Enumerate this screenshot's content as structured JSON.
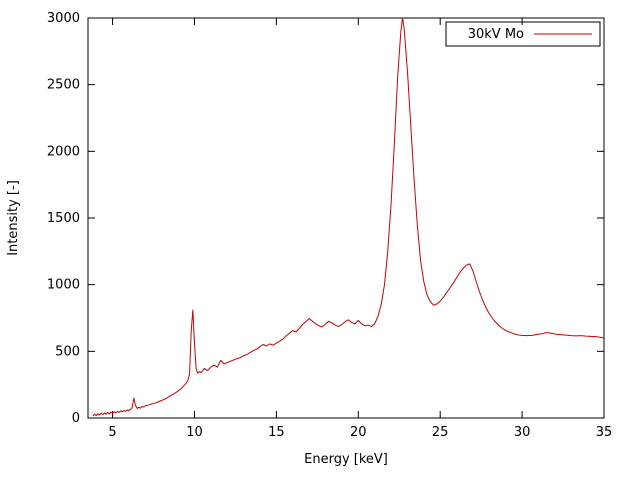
{
  "chart_data": {
    "type": "line",
    "title": "",
    "xlabel": "Energy [keV]",
    "ylabel": "Intensity [-]",
    "xlim": [
      3.5,
      35
    ],
    "ylim": [
      0,
      3000
    ],
    "xticks": [
      5,
      10,
      15,
      20,
      25,
      30,
      35
    ],
    "yticks": [
      0,
      500,
      1000,
      1500,
      2000,
      2500,
      3000
    ],
    "grid": false,
    "legend": {
      "position": "top-right",
      "border": true
    },
    "colors": {
      "line": "#cc0000",
      "axis": "#000000",
      "background": "#ffffff"
    },
    "series": [
      {
        "name": "30kV Mo",
        "color": "#cc0000",
        "points": [
          [
            3.8,
            15
          ],
          [
            3.9,
            28
          ],
          [
            4.0,
            18
          ],
          [
            4.1,
            32
          ],
          [
            4.2,
            22
          ],
          [
            4.3,
            36
          ],
          [
            4.4,
            25
          ],
          [
            4.5,
            38
          ],
          [
            4.6,
            28
          ],
          [
            4.7,
            42
          ],
          [
            4.8,
            30
          ],
          [
            4.9,
            44
          ],
          [
            5.0,
            35
          ],
          [
            5.1,
            48
          ],
          [
            5.2,
            38
          ],
          [
            5.3,
            50
          ],
          [
            5.4,
            42
          ],
          [
            5.5,
            54
          ],
          [
            5.6,
            46
          ],
          [
            5.7,
            56
          ],
          [
            5.8,
            50
          ],
          [
            5.9,
            60
          ],
          [
            6.0,
            56
          ],
          [
            6.1,
            66
          ],
          [
            6.2,
            78
          ],
          [
            6.3,
            150
          ],
          [
            6.4,
            95
          ],
          [
            6.5,
            72
          ],
          [
            6.6,
            80
          ],
          [
            6.7,
            74
          ],
          [
            6.8,
            86
          ],
          [
            6.9,
            82
          ],
          [
            7.0,
            92
          ],
          [
            7.2,
            98
          ],
          [
            7.4,
            106
          ],
          [
            7.6,
            112
          ],
          [
            7.8,
            122
          ],
          [
            8.0,
            132
          ],
          [
            8.2,
            142
          ],
          [
            8.4,
            156
          ],
          [
            8.6,
            172
          ],
          [
            8.8,
            186
          ],
          [
            9.0,
            202
          ],
          [
            9.2,
            222
          ],
          [
            9.4,
            248
          ],
          [
            9.5,
            262
          ],
          [
            9.6,
            282
          ],
          [
            9.7,
            330
          ],
          [
            9.8,
            650
          ],
          [
            9.9,
            810
          ],
          [
            10.0,
            560
          ],
          [
            10.1,
            372
          ],
          [
            10.2,
            336
          ],
          [
            10.3,
            348
          ],
          [
            10.4,
            340
          ],
          [
            10.5,
            356
          ],
          [
            10.6,
            372
          ],
          [
            10.8,
            356
          ],
          [
            11.0,
            382
          ],
          [
            11.2,
            396
          ],
          [
            11.4,
            382
          ],
          [
            11.6,
            432
          ],
          [
            11.8,
            406
          ],
          [
            12.0,
            416
          ],
          [
            12.2,
            426
          ],
          [
            12.4,
            436
          ],
          [
            12.6,
            446
          ],
          [
            12.8,
            452
          ],
          [
            13.0,
            466
          ],
          [
            13.2,
            476
          ],
          [
            13.4,
            492
          ],
          [
            13.6,
            506
          ],
          [
            13.8,
            516
          ],
          [
            14.0,
            536
          ],
          [
            14.2,
            552
          ],
          [
            14.4,
            540
          ],
          [
            14.6,
            556
          ],
          [
            14.8,
            546
          ],
          [
            15.0,
            562
          ],
          [
            15.2,
            576
          ],
          [
            15.4,
            592
          ],
          [
            15.6,
            616
          ],
          [
            15.8,
            636
          ],
          [
            16.0,
            656
          ],
          [
            16.2,
            646
          ],
          [
            16.4,
            672
          ],
          [
            16.6,
            702
          ],
          [
            16.8,
            722
          ],
          [
            17.0,
            746
          ],
          [
            17.2,
            726
          ],
          [
            17.4,
            706
          ],
          [
            17.6,
            692
          ],
          [
            17.8,
            682
          ],
          [
            18.0,
            706
          ],
          [
            18.2,
            726
          ],
          [
            18.4,
            712
          ],
          [
            18.6,
            696
          ],
          [
            18.8,
            686
          ],
          [
            19.0,
            702
          ],
          [
            19.2,
            722
          ],
          [
            19.4,
            736
          ],
          [
            19.6,
            716
          ],
          [
            19.8,
            706
          ],
          [
            20.0,
            732
          ],
          [
            20.2,
            706
          ],
          [
            20.4,
            692
          ],
          [
            20.6,
            696
          ],
          [
            20.8,
            686
          ],
          [
            21.0,
            706
          ],
          [
            21.2,
            762
          ],
          [
            21.4,
            852
          ],
          [
            21.6,
            1002
          ],
          [
            21.8,
            1252
          ],
          [
            22.0,
            1602
          ],
          [
            22.2,
            2052
          ],
          [
            22.4,
            2552
          ],
          [
            22.6,
            2902
          ],
          [
            22.7,
            3000
          ],
          [
            22.8,
            2922
          ],
          [
            23.0,
            2602
          ],
          [
            23.2,
            2202
          ],
          [
            23.4,
            1802
          ],
          [
            23.6,
            1452
          ],
          [
            23.8,
            1182
          ],
          [
            24.0,
            1022
          ],
          [
            24.2,
            922
          ],
          [
            24.4,
            872
          ],
          [
            24.6,
            846
          ],
          [
            24.8,
            856
          ],
          [
            25.0,
            876
          ],
          [
            25.2,
            906
          ],
          [
            25.4,
            942
          ],
          [
            25.6,
            976
          ],
          [
            25.8,
            1012
          ],
          [
            26.0,
            1052
          ],
          [
            26.2,
            1092
          ],
          [
            26.4,
            1122
          ],
          [
            26.6,
            1146
          ],
          [
            26.8,
            1156
          ],
          [
            27.0,
            1102
          ],
          [
            27.2,
            1022
          ],
          [
            27.4,
            946
          ],
          [
            27.6,
            882
          ],
          [
            27.8,
            826
          ],
          [
            28.0,
            782
          ],
          [
            28.2,
            746
          ],
          [
            28.4,
            716
          ],
          [
            28.6,
            692
          ],
          [
            28.8,
            672
          ],
          [
            29.0,
            656
          ],
          [
            29.2,
            646
          ],
          [
            29.4,
            636
          ],
          [
            29.6,
            628
          ],
          [
            29.8,
            622
          ],
          [
            30.0,
            620
          ],
          [
            30.3,
            618
          ],
          [
            30.6,
            620
          ],
          [
            30.9,
            626
          ],
          [
            31.2,
            632
          ],
          [
            31.5,
            640
          ],
          [
            31.8,
            636
          ],
          [
            32.1,
            628
          ],
          [
            32.4,
            624
          ],
          [
            32.7,
            622
          ],
          [
            33.0,
            618
          ],
          [
            33.3,
            616
          ],
          [
            33.6,
            618
          ],
          [
            33.9,
            614
          ],
          [
            34.2,
            612
          ],
          [
            34.5,
            610
          ],
          [
            34.8,
            605
          ],
          [
            35.0,
            600
          ]
        ]
      }
    ]
  }
}
